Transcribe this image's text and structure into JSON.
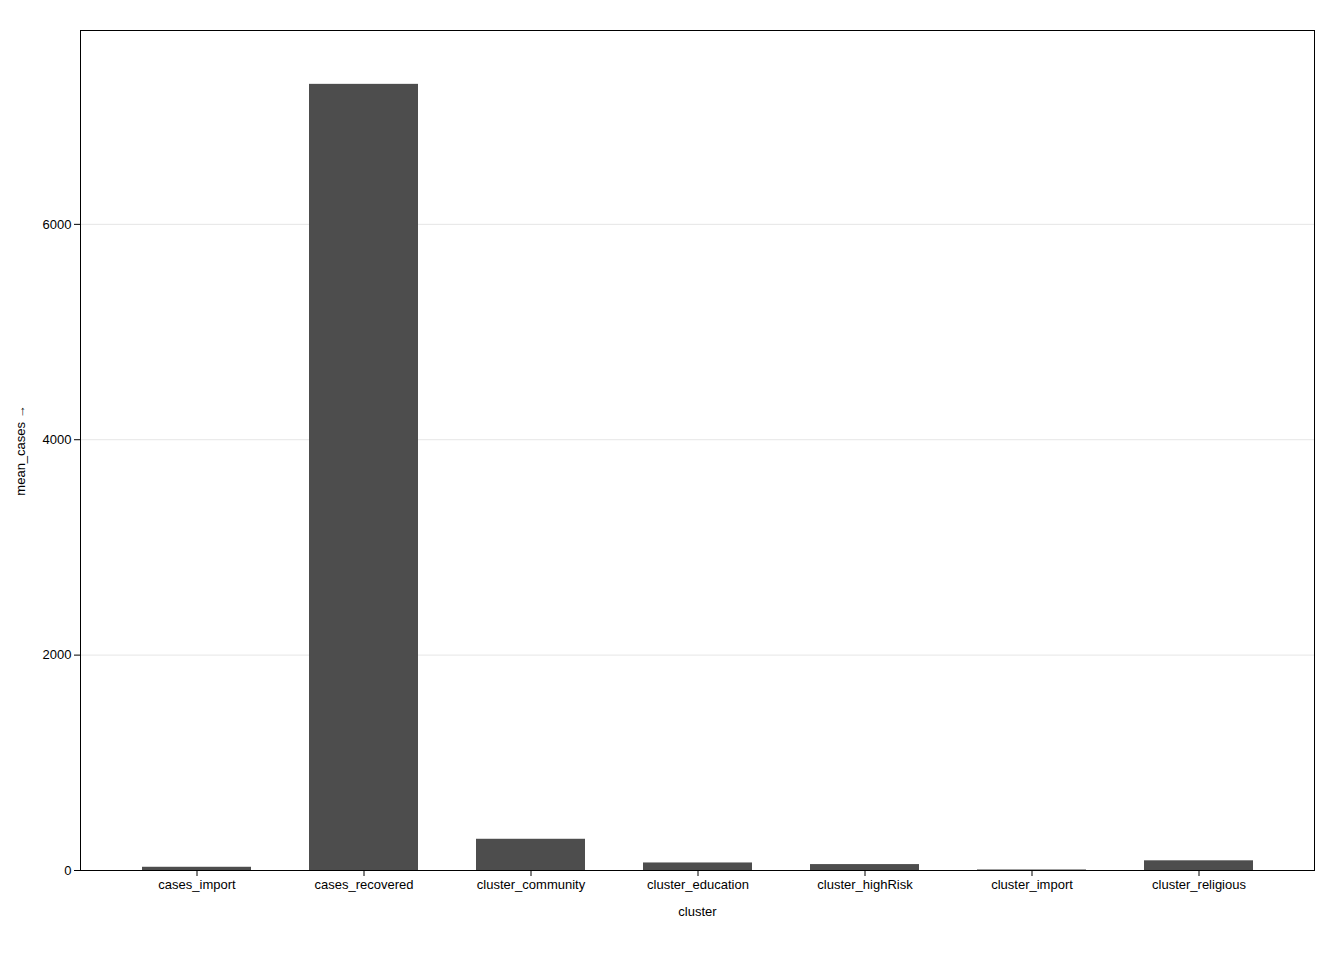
{
  "chart_data": {
    "type": "bar",
    "categories": [
      "cases_import",
      "cases_recovered",
      "cluster_community",
      "cluster_education",
      "cluster_highRisk",
      "cluster_import",
      "cluster_religious"
    ],
    "values": [
      30,
      7300,
      290,
      70,
      55,
      5,
      90
    ],
    "color": "#4d4d4d",
    "xlabel": "cluster",
    "ylabel": "mean_cases",
    "ylim": [
      0,
      7800
    ],
    "yticks": [
      0,
      2000,
      4000,
      6000
    ],
    "grid": true
  }
}
